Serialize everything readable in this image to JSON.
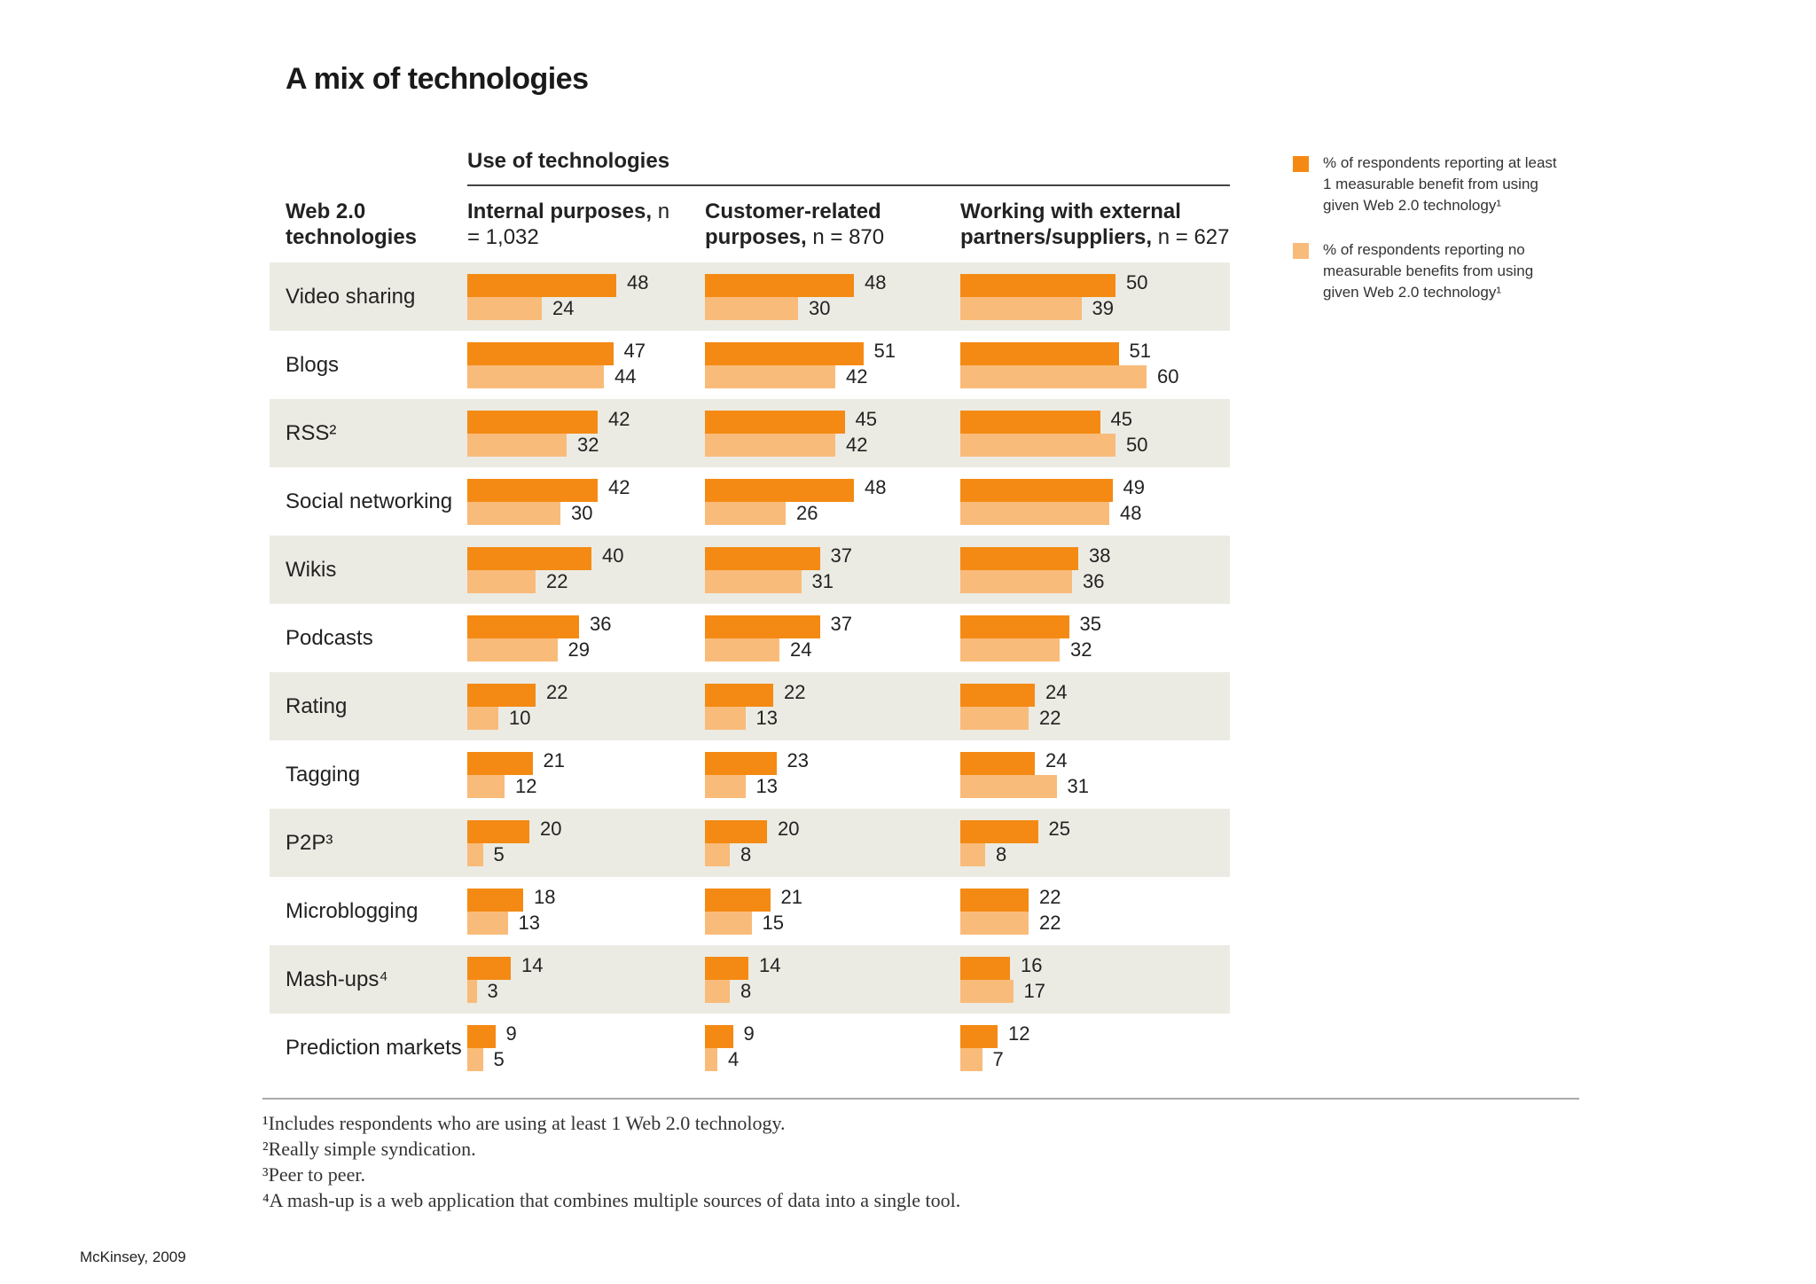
{
  "title": "A mix of technologies",
  "group_header": "Use of technologies",
  "row_header": "Web 2.0 technologies",
  "columns": [
    {
      "label": "Internal purposes,",
      "n": "n = 1,032"
    },
    {
      "label": "Customer-related purposes,",
      "n": "n = 870"
    },
    {
      "label": "Working with external partners/suppliers,",
      "n": "n = 627"
    }
  ],
  "legend": [
    {
      "label": "% of respondents reporting at least 1 measurable benefit from using given Web 2.0 technology¹",
      "color": "#f48a14"
    },
    {
      "label": "% of respondents reporting no measurable benefits from using given Web 2.0 technology¹",
      "color": "#f9bb7a"
    }
  ],
  "chart_data": {
    "type": "bar",
    "orientation": "horizontal",
    "xlim": [
      0,
      60
    ],
    "categories": [
      "Video sharing",
      "Blogs",
      "RSS²",
      "Social networking",
      "Wikis",
      "Podcasts",
      "Rating",
      "Tagging",
      "P2P³",
      "Microblogging",
      "Mash-ups⁴",
      "Prediction markets"
    ],
    "panels": [
      {
        "name": "Internal purposes,",
        "series": [
          {
            "values": [
              48,
              47,
              42,
              42,
              40,
              36,
              22,
              21,
              20,
              18,
              14,
              9
            ]
          },
          {
            "values": [
              24,
              44,
              32,
              30,
              22,
              29,
              10,
              12,
              5,
              13,
              3,
              5
            ]
          }
        ]
      },
      {
        "name": "Customer-related purposes,",
        "series": [
          {
            "values": [
              48,
              51,
              45,
              48,
              37,
              37,
              22,
              23,
              20,
              21,
              14,
              9
            ]
          },
          {
            "values": [
              30,
              42,
              42,
              26,
              31,
              24,
              13,
              13,
              8,
              15,
              8,
              4
            ]
          }
        ]
      },
      {
        "name": "Working with external partners/suppliers,",
        "series": [
          {
            "values": [
              50,
              51,
              45,
              49,
              38,
              35,
              24,
              24,
              25,
              22,
              16,
              12
            ]
          },
          {
            "values": [
              39,
              60,
              50,
              48,
              36,
              32,
              22,
              31,
              8,
              22,
              17,
              7
            ]
          }
        ]
      }
    ]
  },
  "footnotes": [
    "¹Includes respondents who are using at least 1 Web 2.0 technology.",
    "²Really simple syndication.",
    "³Peer to peer.",
    "⁴A mash-up is a web application that combines multiple sources of data into a single tool."
  ],
  "source": "McKinsey, 2009"
}
